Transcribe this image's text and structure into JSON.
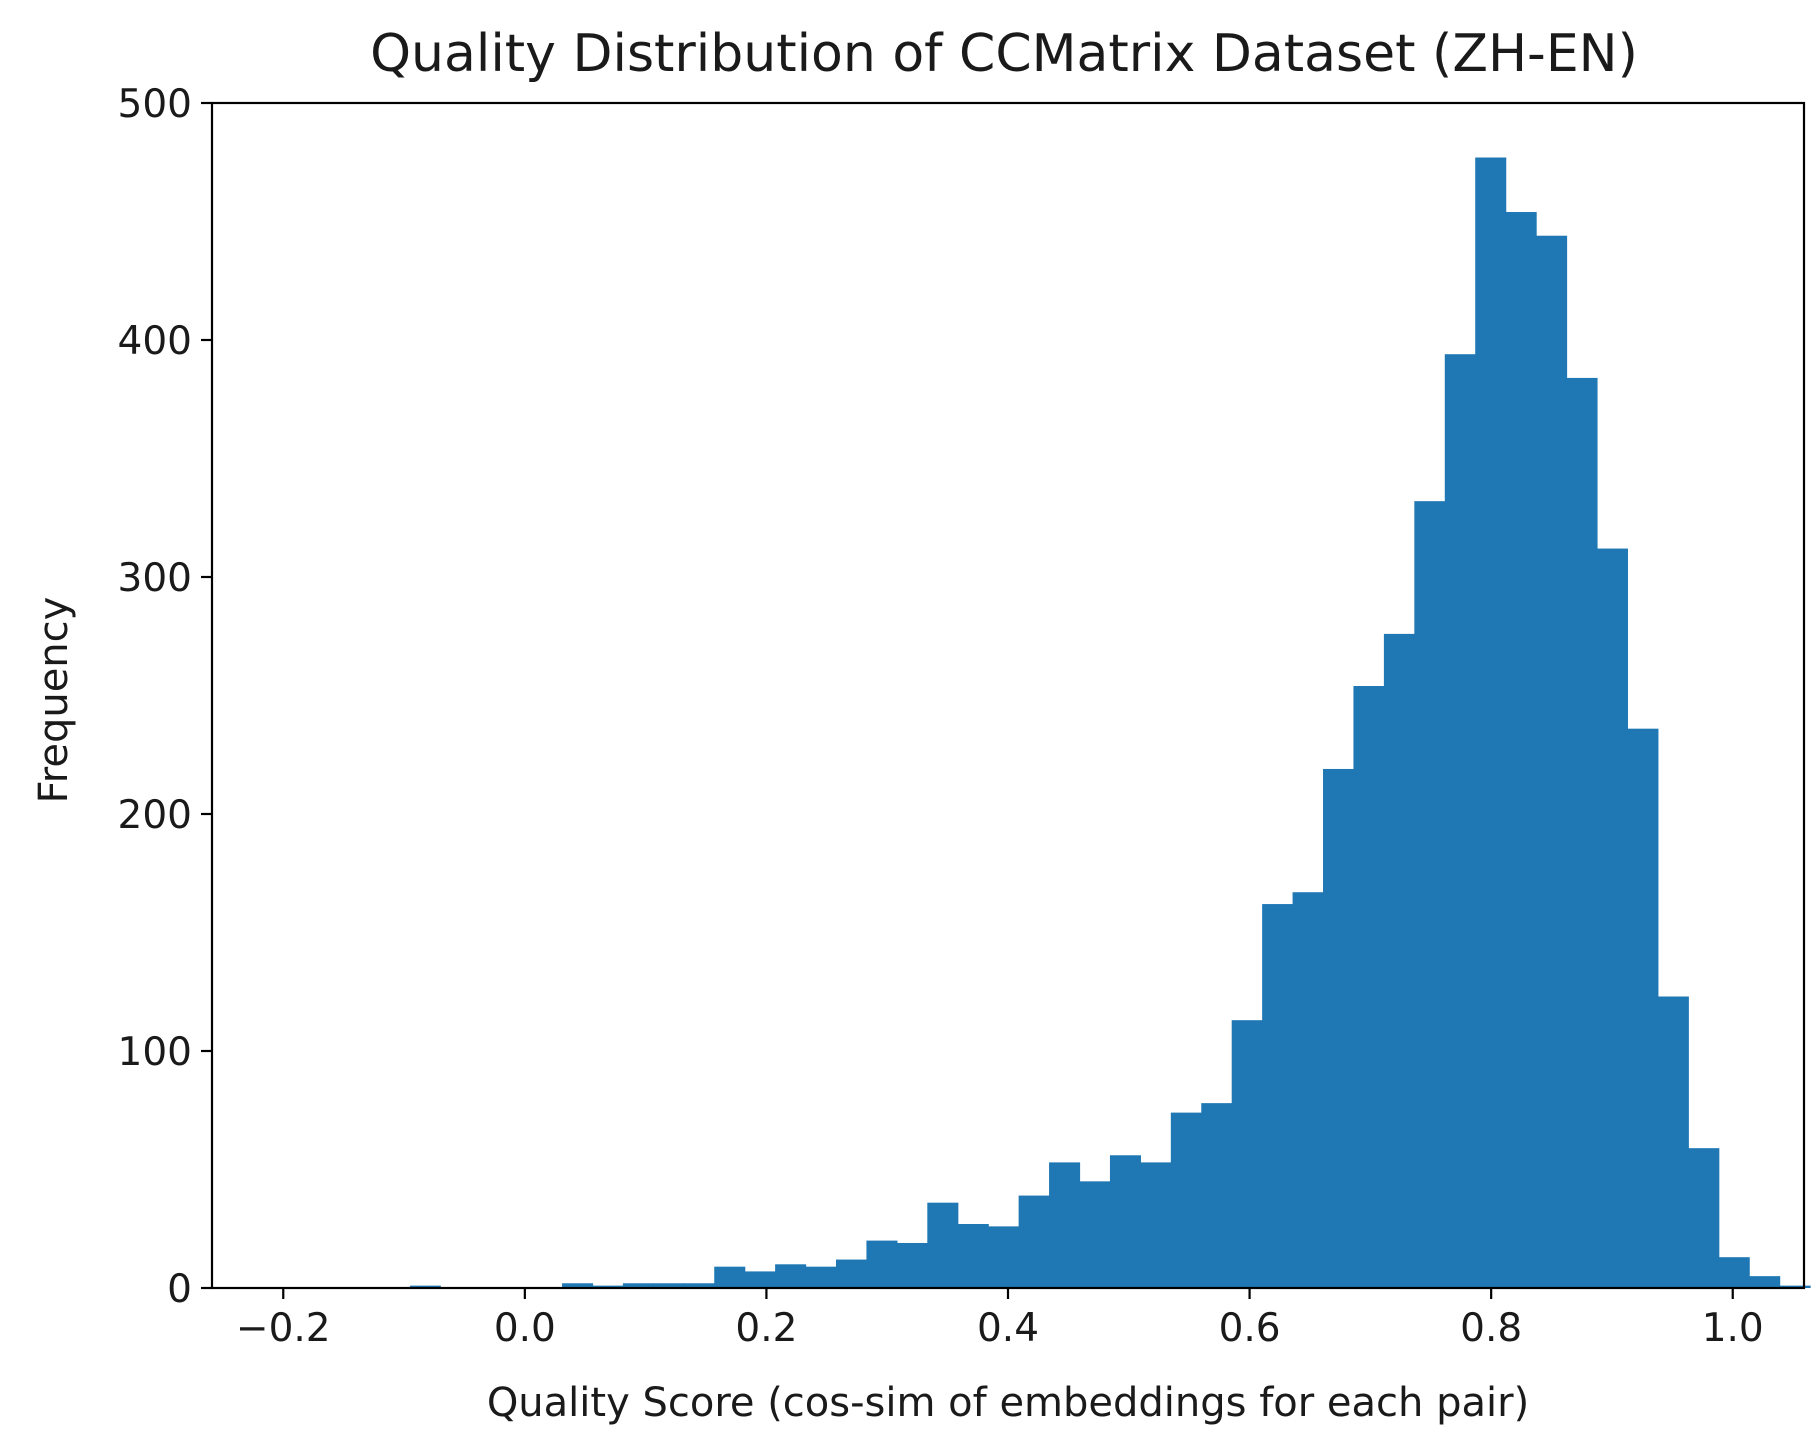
{
  "chart_data": {
    "type": "bar",
    "subtype": "histogram",
    "title": "Quality Distribution of CCMatrix Dataset (ZH-EN)",
    "xlabel": "Quality Score (cos-sim of embeddings for each pair)",
    "ylabel": "Frequency",
    "xlim": [
      -0.259,
      1.059
    ],
    "ylim": [
      0,
      500
    ],
    "xticks": [
      -0.2,
      0.0,
      0.2,
      0.4,
      0.6,
      0.8,
      1.0
    ],
    "xtick_labels": [
      "−0.2",
      "0.0",
      "0.2",
      "0.4",
      "0.6",
      "0.8",
      "1.0"
    ],
    "yticks": [
      0,
      100,
      200,
      300,
      400,
      500
    ],
    "ytick_labels": [
      "0",
      "100",
      "200",
      "300",
      "400",
      "500"
    ],
    "grid": false,
    "color": "#1f77b4",
    "bin_start": -0.196,
    "bin_width": 0.0252,
    "values": [
      0,
      0,
      0,
      0,
      1,
      0,
      0,
      0,
      0,
      2,
      1,
      2,
      2,
      2,
      9,
      7,
      10,
      9,
      12,
      20,
      19,
      36,
      27,
      26,
      39,
      53,
      45,
      56,
      53,
      74,
      78,
      113,
      162,
      167,
      219,
      254,
      276,
      332,
      394,
      477,
      454,
      444,
      384,
      312,
      236,
      123,
      59,
      13,
      5,
      1
    ]
  }
}
